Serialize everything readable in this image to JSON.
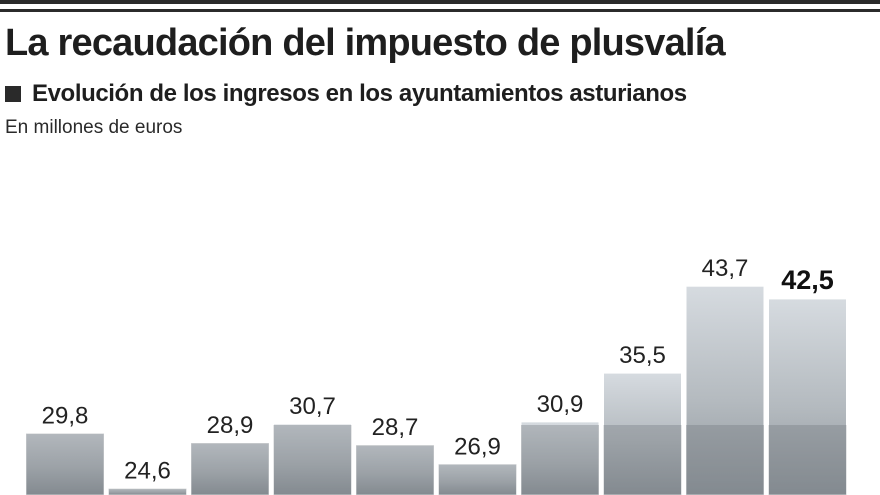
{
  "title": "La recaudación del impuesto de plusvalía",
  "subtitle": "Evolución de los ingresos en los ayuntamientos asturianos",
  "unit_label": "En millones de euros",
  "chart_data": {
    "type": "bar",
    "title": "La recaudación del impuesto de plusvalía",
    "subtitle": "Evolución de los ingresos en los ayuntamientos asturianos",
    "ylabel": "En millones de euros",
    "value_labels": [
      "29,8",
      "24,6",
      "28,9",
      "30,7",
      "28,7",
      "26,9",
      "30,9",
      "35,5",
      "43,7",
      "42,5"
    ],
    "values": [
      29.8,
      24.6,
      28.9,
      30.7,
      28.7,
      26.9,
      30.9,
      35.5,
      43.7,
      42.5
    ],
    "highlight_last": true,
    "colors": {
      "bar_top": "#d6dbe0",
      "bar_bottom": "#8e959b",
      "bar_edge": "#ffffff"
    }
  }
}
